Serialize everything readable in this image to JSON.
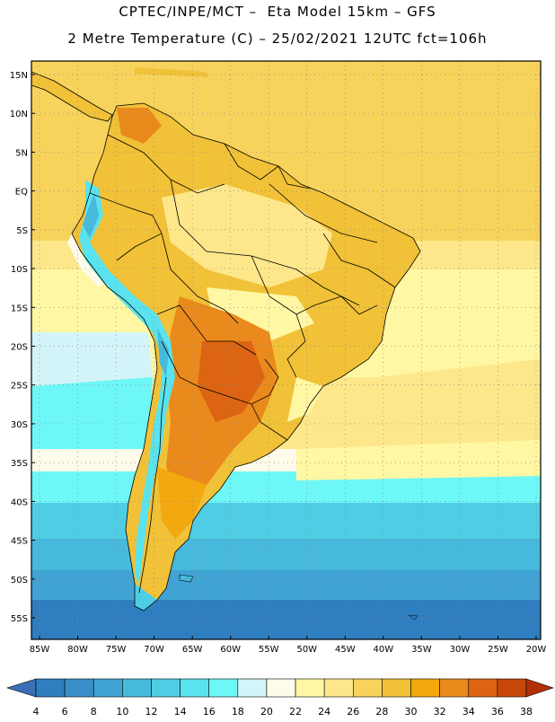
{
  "title": {
    "line1": "CPTEC/INPE/MCT –  Eta Model 15km – GFS",
    "line2": "2 Metre Temperature (C) – 25/02/2021 12UTC fct=106h"
  },
  "map": {
    "region": "South America",
    "lat_labels": [
      "15N",
      "10N",
      "5N",
      "EQ",
      "5S",
      "10S",
      "15S",
      "20S",
      "25S",
      "30S",
      "35S",
      "40S",
      "45S",
      "50S",
      "55S"
    ],
    "lon_labels": [
      "85W",
      "80W",
      "75W",
      "70W",
      "65W",
      "60W",
      "55W",
      "50W",
      "45W",
      "40W",
      "35W",
      "30W",
      "25W",
      "20W"
    ]
  },
  "colorbar": {
    "ticks": [
      "4",
      "6",
      "8",
      "10",
      "12",
      "14",
      "16",
      "18",
      "20",
      "22",
      "24",
      "26",
      "28",
      "30",
      "32",
      "34",
      "36",
      "38"
    ],
    "colors": [
      "#3a6fb5",
      "#2f7ebf",
      "#3a8fc8",
      "#40a3d3",
      "#46b9dc",
      "#4fcde4",
      "#5ae3ee",
      "#6ef7f7",
      "#d3f4f9",
      "#fffbea",
      "#fff7a3",
      "#fde78a",
      "#f7d35c",
      "#f1c137",
      "#f2a80e",
      "#ea8a1c",
      "#dc6412",
      "#c8470d",
      "#b03005"
    ]
  }
}
